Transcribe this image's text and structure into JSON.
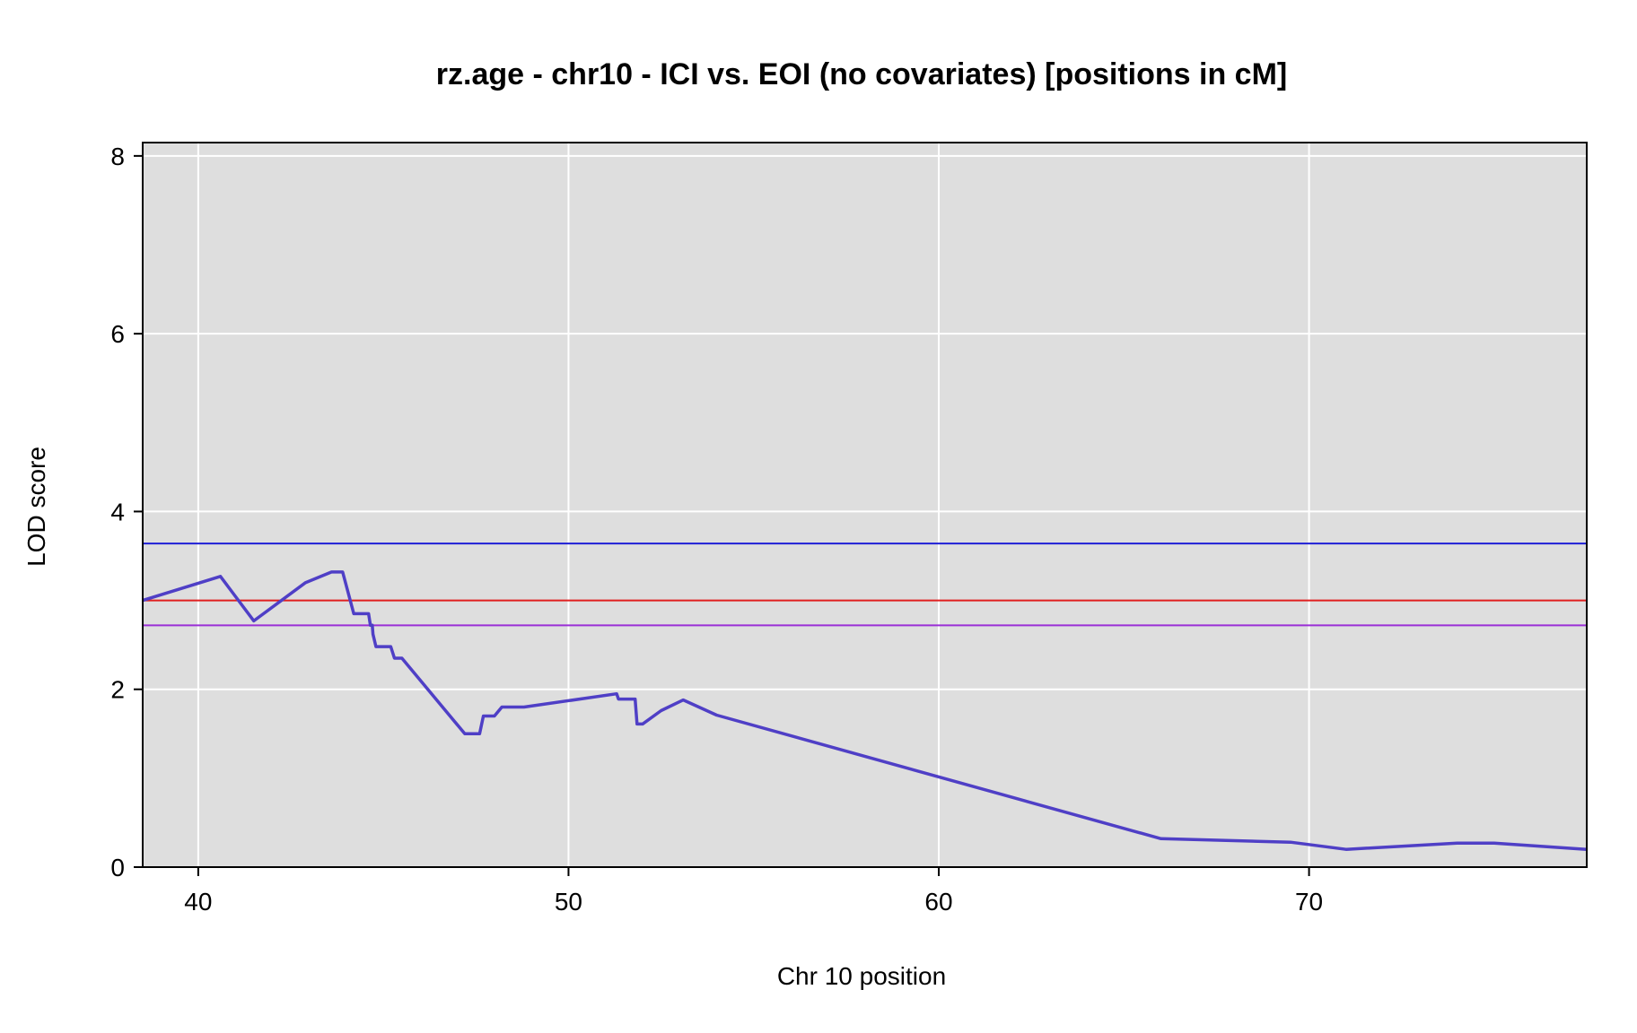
{
  "chart_data": {
    "type": "line",
    "title": "rz.age - chr10 - ICI vs. EOI (no covariates) [positions in cM]",
    "xlabel": "Chr 10 position",
    "ylabel": "LOD score",
    "xlim": [
      38.5,
      77.5
    ],
    "ylim": [
      0,
      8.15
    ],
    "xticks": [
      40,
      50,
      60,
      70
    ],
    "yticks": [
      0,
      2,
      4,
      6,
      8
    ],
    "grid": true,
    "background_color": "#dedede",
    "grid_color": "#ffffff",
    "series": [
      {
        "color": "#4f3fc6",
        "x": [
          38.5,
          40.6,
          41.5,
          42.9,
          43.6,
          43.9,
          44.2,
          44.6,
          44.65,
          44.7,
          44.72,
          44.8,
          45.0,
          45.2,
          45.3,
          45.4,
          45.5,
          47.2,
          47.3,
          47.6,
          47.7,
          48.0,
          48.2,
          48.5,
          48.8,
          51.3,
          51.35,
          51.8,
          51.85,
          52.0,
          52.5,
          53.1,
          54.0,
          66.0,
          69.5,
          71.0,
          74.0,
          75.0,
          77.5
        ],
        "y": [
          3.0,
          3.27,
          2.77,
          3.2,
          3.32,
          3.32,
          2.85,
          2.85,
          2.72,
          2.72,
          2.62,
          2.48,
          2.48,
          2.48,
          2.35,
          2.35,
          2.35,
          1.5,
          1.5,
          1.5,
          1.7,
          1.7,
          1.8,
          1.8,
          1.8,
          1.95,
          1.89,
          1.89,
          1.61,
          1.61,
          1.76,
          1.88,
          1.71,
          0.32,
          0.28,
          0.2,
          0.27,
          0.27,
          0.2
        ]
      }
    ],
    "threshold_lines": [
      {
        "y": 3.64,
        "color": "#1f1fd6"
      },
      {
        "y": 3.0,
        "color": "#e01f1f"
      },
      {
        "y": 2.72,
        "color": "#9a2fd6"
      }
    ]
  }
}
